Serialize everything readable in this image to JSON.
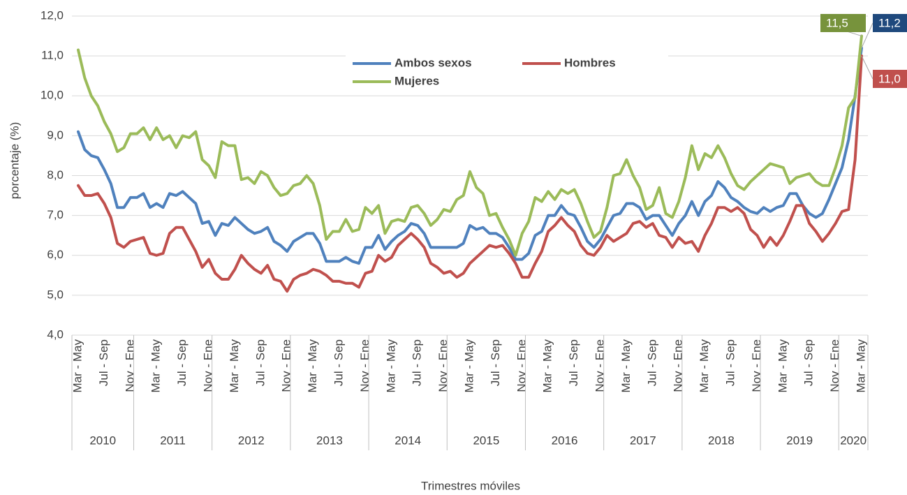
{
  "chart_data": {
    "type": "line",
    "y_label": "porcentaje (%)",
    "x_label": "Trimestres móviles",
    "ylim": [
      4,
      12
    ],
    "yticks": [
      {
        "value": 4,
        "label": "4,0"
      },
      {
        "value": 5,
        "label": "5,0"
      },
      {
        "value": 6,
        "label": "6,0"
      },
      {
        "value": 7,
        "label": "7,0"
      },
      {
        "value": 8,
        "label": "8,0"
      },
      {
        "value": 9,
        "label": "9,0"
      },
      {
        "value": 10,
        "label": "10,0"
      },
      {
        "value": 11,
        "label": "11,0"
      },
      {
        "value": 12,
        "label": "12,0"
      }
    ],
    "grid": true,
    "legend": "top",
    "categories": [
      "Mar - May",
      null,
      null,
      null,
      "Jul - Sep",
      null,
      null,
      null,
      "Nov - Ene",
      null,
      null,
      null,
      "Mar - May",
      null,
      null,
      null,
      "Jul - Sep",
      null,
      null,
      null,
      "Nov - Ene",
      null,
      null,
      null,
      "Mar - May",
      null,
      null,
      null,
      "Jul - Sep",
      null,
      null,
      null,
      "Nov - Ene",
      null,
      null,
      null,
      "Mar - May",
      null,
      null,
      null,
      "Jul - Sep",
      null,
      null,
      null,
      "Nov - Ene",
      null,
      null,
      null,
      "Mar - May",
      null,
      null,
      null,
      "Jul - Sep",
      null,
      null,
      null,
      "Nov - Ene",
      null,
      null,
      null,
      "Mar - May",
      null,
      null,
      null,
      "Jul - Sep",
      null,
      null,
      null,
      "Nov - Ene",
      null,
      null,
      null,
      "Mar - May",
      null,
      null,
      null,
      "Jul - Sep",
      null,
      null,
      null,
      "Nov - Ene",
      null,
      null,
      null,
      "Mar - May",
      null,
      null,
      null,
      "Jul - Sep",
      null,
      null,
      null,
      "Nov - Ene",
      null,
      null,
      null,
      "Mar - May",
      null,
      null,
      null,
      "Jul - Sep",
      null,
      null,
      null,
      "Nov - Ene",
      null,
      null,
      null,
      "Mar - May",
      null,
      null,
      null,
      "Jul - Sep",
      null,
      null,
      null,
      "Nov - Ene",
      null,
      null,
      null,
      "Mar - May"
    ],
    "category_groups": [
      {
        "label": "2010",
        "count": 9
      },
      {
        "label": "2011",
        "count": 12
      },
      {
        "label": "2012",
        "count": 12
      },
      {
        "label": "2013",
        "count": 12
      },
      {
        "label": "2014",
        "count": 12
      },
      {
        "label": "2015",
        "count": 12
      },
      {
        "label": "2016",
        "count": 12
      },
      {
        "label": "2017",
        "count": 12
      },
      {
        "label": "2018",
        "count": 12
      },
      {
        "label": "2019",
        "count": 12
      },
      {
        "label": "2020",
        "count": 4
      }
    ],
    "series": [
      {
        "name": "Ambos sexos",
        "color": "#4f81bd",
        "label_color": "#1f497d",
        "values": [
          9.1,
          8.65,
          8.5,
          8.45,
          8.15,
          7.8,
          7.2,
          7.2,
          7.45,
          7.45,
          7.55,
          7.2,
          7.3,
          7.2,
          7.55,
          7.5,
          7.6,
          7.45,
          7.3,
          6.8,
          6.85,
          6.5,
          6.8,
          6.75,
          6.95,
          6.8,
          6.65,
          6.55,
          6.6,
          6.7,
          6.35,
          6.25,
          6.1,
          6.35,
          6.45,
          6.55,
          6.55,
          6.3,
          5.85,
          5.85,
          5.85,
          5.95,
          5.85,
          5.8,
          6.2,
          6.2,
          6.5,
          6.15,
          6.35,
          6.5,
          6.6,
          6.8,
          6.75,
          6.55,
          6.2,
          6.2,
          6.2,
          6.2,
          6.2,
          6.3,
          6.75,
          6.65,
          6.7,
          6.55,
          6.55,
          6.45,
          6.2,
          5.9,
          5.9,
          6.05,
          6.5,
          6.6,
          7.0,
          7.0,
          7.25,
          7.05,
          7.0,
          6.7,
          6.35,
          6.2,
          6.4,
          6.7,
          7.0,
          7.05,
          7.3,
          7.3,
          7.2,
          6.9,
          7.0,
          7.0,
          6.75,
          6.5,
          6.8,
          7.0,
          7.35,
          7.0,
          7.35,
          7.5,
          7.85,
          7.7,
          7.45,
          7.35,
          7.2,
          7.1,
          7.05,
          7.2,
          7.1,
          7.2,
          7.25,
          7.55,
          7.55,
          7.25,
          7.05,
          6.95,
          7.05,
          7.4,
          7.8,
          8.2,
          8.9,
          10.0,
          11.2
        ],
        "value_labels": [
          null,
          null,
          null,
          null,
          null,
          null,
          null,
          null,
          null,
          null,
          null,
          null,
          null,
          null,
          null,
          null,
          null,
          null,
          null,
          null,
          null,
          null,
          null,
          null,
          null,
          null,
          null,
          null,
          null,
          null,
          null,
          null,
          null,
          null,
          null,
          null,
          null,
          null,
          null,
          null,
          null,
          null,
          null,
          null,
          null,
          null,
          null,
          null,
          null,
          null,
          null,
          null,
          null,
          null,
          null,
          null,
          null,
          null,
          null,
          null,
          null,
          null,
          null,
          null,
          null,
          null,
          null,
          null,
          null,
          null,
          null,
          null,
          null,
          null,
          null,
          null,
          null,
          null,
          null,
          null,
          null,
          null,
          null,
          null,
          null,
          null,
          null,
          null,
          null,
          null,
          null,
          null,
          null,
          null,
          null,
          null,
          null,
          null,
          null,
          null,
          null,
          null,
          null,
          null,
          null,
          null,
          null,
          null,
          null,
          null,
          null,
          null,
          null,
          null,
          null,
          null,
          null,
          null,
          null,
          null,
          "11,2"
        ]
      },
      {
        "name": "Hombres",
        "color": "#c0504d",
        "label_color": "#c0504d",
        "values": [
          7.75,
          7.5,
          7.5,
          7.55,
          7.3,
          6.95,
          6.3,
          6.2,
          6.35,
          6.4,
          6.45,
          6.05,
          6.0,
          6.05,
          6.55,
          6.7,
          6.7,
          6.4,
          6.1,
          5.7,
          5.9,
          5.55,
          5.4,
          5.4,
          5.65,
          6.0,
          5.8,
          5.65,
          5.55,
          5.75,
          5.4,
          5.35,
          5.1,
          5.4,
          5.5,
          5.55,
          5.65,
          5.6,
          5.5,
          5.35,
          5.35,
          5.3,
          5.3,
          5.2,
          5.55,
          5.6,
          6.0,
          5.85,
          5.95,
          6.25,
          6.4,
          6.55,
          6.4,
          6.2,
          5.8,
          5.7,
          5.55,
          5.6,
          5.45,
          5.55,
          5.8,
          5.95,
          6.1,
          6.25,
          6.2,
          6.25,
          6.05,
          5.8,
          5.45,
          5.45,
          5.8,
          6.1,
          6.6,
          6.75,
          6.95,
          6.75,
          6.6,
          6.25,
          6.05,
          6.0,
          6.2,
          6.5,
          6.35,
          6.45,
          6.55,
          6.8,
          6.85,
          6.7,
          6.8,
          6.5,
          6.45,
          6.2,
          6.45,
          6.3,
          6.35,
          6.1,
          6.5,
          6.8,
          7.2,
          7.2,
          7.1,
          7.2,
          7.05,
          6.65,
          6.5,
          6.2,
          6.45,
          6.25,
          6.5,
          6.85,
          7.25,
          7.25,
          6.8,
          6.6,
          6.35,
          6.55,
          6.8,
          7.1,
          7.15,
          8.4,
          11.0
        ],
        "value_labels": [
          null,
          null,
          null,
          null,
          null,
          null,
          null,
          null,
          null,
          null,
          null,
          null,
          null,
          null,
          null,
          null,
          null,
          null,
          null,
          null,
          null,
          null,
          null,
          null,
          null,
          null,
          null,
          null,
          null,
          null,
          null,
          null,
          null,
          null,
          null,
          null,
          null,
          null,
          null,
          null,
          null,
          null,
          null,
          null,
          null,
          null,
          null,
          null,
          null,
          null,
          null,
          null,
          null,
          null,
          null,
          null,
          null,
          null,
          null,
          null,
          null,
          null,
          null,
          null,
          null,
          null,
          null,
          null,
          null,
          null,
          null,
          null,
          null,
          null,
          null,
          null,
          null,
          null,
          null,
          null,
          null,
          null,
          null,
          null,
          null,
          null,
          null,
          null,
          null,
          null,
          null,
          null,
          null,
          null,
          null,
          null,
          null,
          null,
          null,
          null,
          null,
          null,
          null,
          null,
          null,
          null,
          null,
          null,
          null,
          null,
          null,
          null,
          null,
          null,
          null,
          null,
          null,
          null,
          null,
          null,
          "11,0"
        ]
      },
      {
        "name": "Mujeres",
        "color": "#9bbb59",
        "label_color": "#77933c",
        "values": [
          11.15,
          10.45,
          10.0,
          9.75,
          9.35,
          9.05,
          8.6,
          8.7,
          9.05,
          9.05,
          9.2,
          8.9,
          9.2,
          8.9,
          9.0,
          8.7,
          9.0,
          8.95,
          9.1,
          8.4,
          8.25,
          7.95,
          8.85,
          8.75,
          8.75,
          7.9,
          7.95,
          7.8,
          8.1,
          8.0,
          7.7,
          7.5,
          7.55,
          7.75,
          7.8,
          8.0,
          7.8,
          7.25,
          6.4,
          6.6,
          6.6,
          6.9,
          6.6,
          6.65,
          7.2,
          7.05,
          7.25,
          6.55,
          6.85,
          6.9,
          6.85,
          7.2,
          7.25,
          7.05,
          6.75,
          6.9,
          7.15,
          7.1,
          7.4,
          7.5,
          8.1,
          7.7,
          7.55,
          7.0,
          7.05,
          6.7,
          6.4,
          6.0,
          6.55,
          6.85,
          7.45,
          7.35,
          7.6,
          7.4,
          7.65,
          7.55,
          7.65,
          7.3,
          6.85,
          6.45,
          6.6,
          7.2,
          8.0,
          8.05,
          8.4,
          8.0,
          7.7,
          7.15,
          7.25,
          7.7,
          7.05,
          6.95,
          7.35,
          7.95,
          8.75,
          8.15,
          8.55,
          8.45,
          8.75,
          8.45,
          8.05,
          7.75,
          7.65,
          7.85,
          8.0,
          8.15,
          8.3,
          8.25,
          8.2,
          7.8,
          7.95,
          8.0,
          8.05,
          7.85,
          7.75,
          7.75,
          8.2,
          8.75,
          9.7,
          9.95,
          11.5
        ],
        "value_labels": [
          null,
          null,
          null,
          null,
          null,
          null,
          null,
          null,
          null,
          null,
          null,
          null,
          null,
          null,
          null,
          null,
          null,
          null,
          null,
          null,
          null,
          null,
          null,
          null,
          null,
          null,
          null,
          null,
          null,
          null,
          null,
          null,
          null,
          null,
          null,
          null,
          null,
          null,
          null,
          null,
          null,
          null,
          null,
          null,
          null,
          null,
          null,
          null,
          null,
          null,
          null,
          null,
          null,
          null,
          null,
          null,
          null,
          null,
          null,
          null,
          null,
          null,
          null,
          null,
          null,
          null,
          null,
          null,
          null,
          null,
          null,
          null,
          null,
          null,
          null,
          null,
          null,
          null,
          null,
          null,
          null,
          null,
          null,
          null,
          null,
          null,
          null,
          null,
          null,
          null,
          null,
          null,
          null,
          null,
          null,
          null,
          null,
          null,
          null,
          null,
          null,
          null,
          null,
          null,
          null,
          null,
          null,
          null,
          null,
          null,
          null,
          null,
          null,
          null,
          null,
          null,
          null,
          null,
          null,
          null,
          "11,5"
        ]
      }
    ]
  }
}
